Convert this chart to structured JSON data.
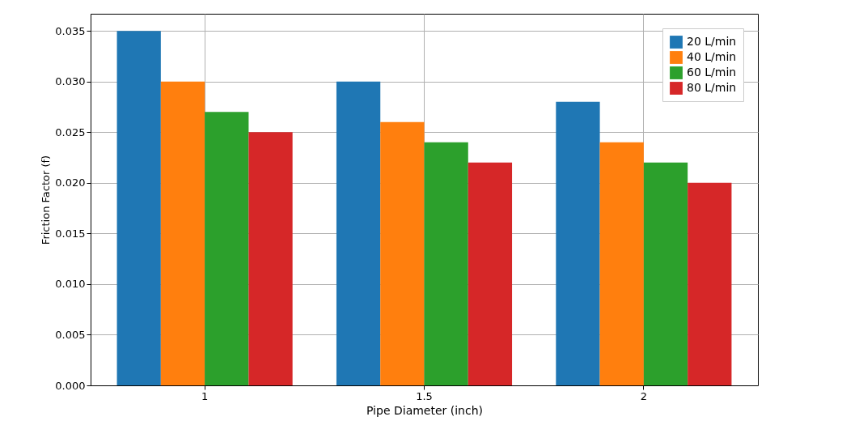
{
  "chart_data": {
    "type": "bar",
    "xlabel": "Pipe Diameter (inch)",
    "ylabel": "Friction Factor (f)",
    "categories": [
      "1",
      "1.5",
      "2"
    ],
    "series": [
      {
        "name": "20 L/min",
        "color": "#1f77b4",
        "values": [
          0.035,
          0.03,
          0.028
        ]
      },
      {
        "name": "40 L/min",
        "color": "#ff7f0e",
        "values": [
          0.03,
          0.026,
          0.024
        ]
      },
      {
        "name": "60 L/min",
        "color": "#2ca02c",
        "values": [
          0.027,
          0.024,
          0.022
        ]
      },
      {
        "name": "80 L/min",
        "color": "#d62728",
        "values": [
          0.025,
          0.022,
          0.02
        ]
      }
    ],
    "ylim": [
      0,
      0.0367
    ],
    "yticks": [
      {
        "value": 0,
        "label": "0.000"
      },
      {
        "value": 0.005,
        "label": "0.005"
      },
      {
        "value": 0.01,
        "label": "0.010"
      },
      {
        "value": 0.015,
        "label": "0.015"
      },
      {
        "value": 0.02,
        "label": "0.020"
      },
      {
        "value": 0.025,
        "label": "0.025"
      },
      {
        "value": 0.03,
        "label": "0.030"
      },
      {
        "value": 0.035,
        "label": "0.035"
      }
    ],
    "grid": true,
    "legend": "top right"
  }
}
